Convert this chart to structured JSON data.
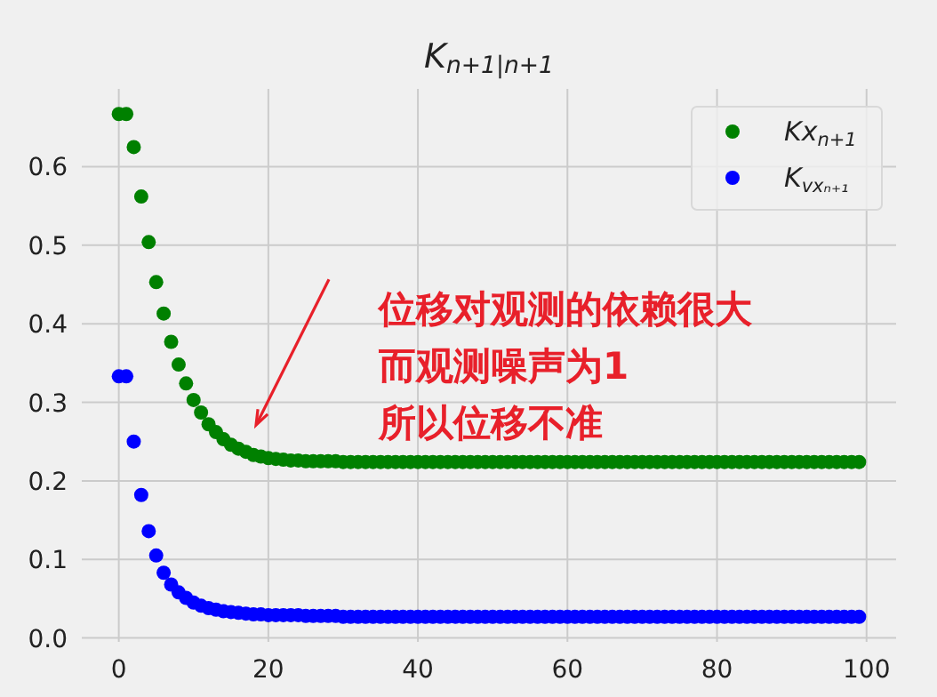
{
  "chart_data": {
    "type": "scatter",
    "title": "K$_{n+1|n+1}$",
    "x": [
      0,
      1,
      2,
      3,
      4,
      5,
      6,
      7,
      8,
      9,
      10,
      11,
      12,
      13,
      14,
      15,
      16,
      17,
      18,
      19,
      20,
      21,
      22,
      23,
      24,
      25,
      26,
      27,
      28,
      29,
      30,
      31,
      32,
      33,
      34,
      35,
      36,
      37,
      38,
      39,
      40,
      41,
      42,
      43,
      44,
      45,
      46,
      47,
      48,
      49,
      50,
      51,
      52,
      53,
      54,
      55,
      56,
      57,
      58,
      59,
      60,
      61,
      62,
      63,
      64,
      65,
      66,
      67,
      68,
      69,
      70,
      71,
      72,
      73,
      74,
      75,
      76,
      77,
      78,
      79,
      80,
      81,
      82,
      83,
      84,
      85,
      86,
      87,
      88,
      89,
      90,
      91,
      92,
      93,
      94,
      95,
      96,
      97,
      98,
      99
    ],
    "series": [
      {
        "name": "Kx$_{n+1}$",
        "color": "#008000",
        "values": [
          0.667,
          0.667,
          0.625,
          0.562,
          0.504,
          0.453,
          0.413,
          0.377,
          0.348,
          0.324,
          0.303,
          0.287,
          0.272,
          0.262,
          0.253,
          0.246,
          0.241,
          0.237,
          0.233,
          0.231,
          0.229,
          0.228,
          0.227,
          0.226,
          0.226,
          0.225,
          0.225,
          0.225,
          0.225,
          0.225,
          0.224,
          0.224,
          0.224,
          0.224,
          0.224,
          0.224,
          0.224,
          0.224,
          0.224,
          0.224,
          0.224,
          0.224,
          0.224,
          0.224,
          0.224,
          0.224,
          0.224,
          0.224,
          0.224,
          0.224,
          0.224,
          0.224,
          0.224,
          0.224,
          0.224,
          0.224,
          0.224,
          0.224,
          0.224,
          0.224,
          0.224,
          0.224,
          0.224,
          0.224,
          0.224,
          0.224,
          0.224,
          0.224,
          0.224,
          0.224,
          0.224,
          0.224,
          0.224,
          0.224,
          0.224,
          0.224,
          0.224,
          0.224,
          0.224,
          0.224,
          0.224,
          0.224,
          0.224,
          0.224,
          0.224,
          0.224,
          0.224,
          0.224,
          0.224,
          0.224,
          0.224,
          0.224,
          0.224,
          0.224,
          0.224,
          0.224,
          0.224,
          0.224,
          0.224,
          0.224
        ]
      },
      {
        "name": "K$_{vxₙ₊₁}$",
        "color": "#0000ff",
        "values": [
          0.333,
          0.333,
          0.25,
          0.182,
          0.136,
          0.105,
          0.083,
          0.068,
          0.058,
          0.051,
          0.045,
          0.041,
          0.038,
          0.036,
          0.034,
          0.033,
          0.032,
          0.031,
          0.03,
          0.03,
          0.029,
          0.029,
          0.029,
          0.029,
          0.029,
          0.028,
          0.028,
          0.028,
          0.028,
          0.028,
          0.027,
          0.027,
          0.027,
          0.027,
          0.027,
          0.027,
          0.027,
          0.027,
          0.027,
          0.027,
          0.027,
          0.027,
          0.027,
          0.027,
          0.027,
          0.027,
          0.027,
          0.027,
          0.027,
          0.027,
          0.027,
          0.027,
          0.027,
          0.027,
          0.027,
          0.027,
          0.027,
          0.027,
          0.027,
          0.027,
          0.027,
          0.027,
          0.027,
          0.027,
          0.027,
          0.027,
          0.027,
          0.027,
          0.027,
          0.027,
          0.027,
          0.027,
          0.027,
          0.027,
          0.027,
          0.027,
          0.027,
          0.027,
          0.027,
          0.027,
          0.027,
          0.027,
          0.027,
          0.027,
          0.027,
          0.027,
          0.027,
          0.027,
          0.027,
          0.027,
          0.027,
          0.027,
          0.027,
          0.027,
          0.027,
          0.027,
          0.027,
          0.027,
          0.027,
          0.027
        ]
      }
    ],
    "xlim": [
      -4.95,
      103.95
    ],
    "ylim": [
      -0.005,
      0.699
    ],
    "xticks": [
      0,
      20,
      40,
      60,
      80,
      100
    ],
    "yticks": [
      {
        "value": 0,
        "label": "0.0"
      },
      0.1,
      0.2,
      0.3,
      0.4,
      0.5,
      0.6
    ],
    "grid": true,
    "legend": "top right",
    "marker": "circle",
    "annotations": [
      "位移对观测的依赖很大",
      "而观测噪声为1",
      "所以位移不准"
    ]
  }
}
